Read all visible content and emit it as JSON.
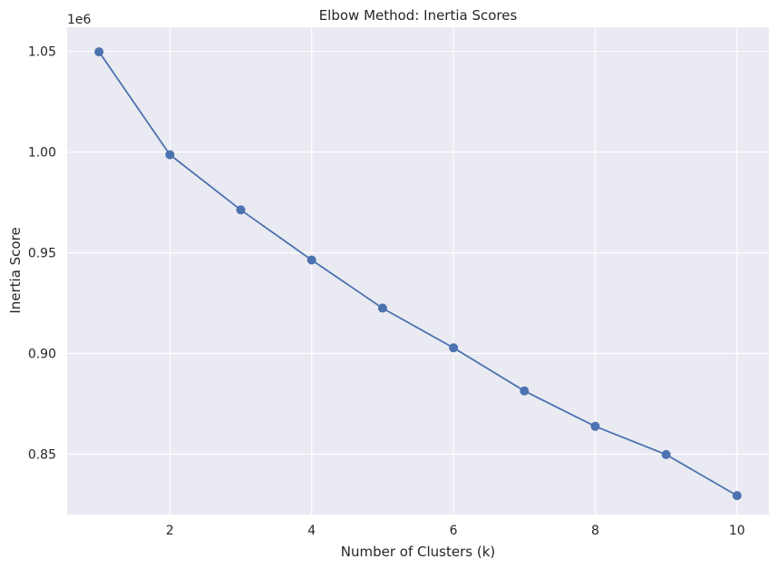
{
  "chart_data": {
    "type": "line",
    "title": "Elbow Method: Inertia Scores",
    "xlabel": "Number of Clusters (k)",
    "ylabel": "Inertia Score",
    "offset_text": "1e6",
    "x": [
      1,
      2,
      3,
      4,
      5,
      6,
      7,
      8,
      9,
      10
    ],
    "series": [
      {
        "values": [
          1049800,
          998700,
          971300,
          946400,
          922500,
          902800,
          881400,
          863800,
          849800,
          829400
        ]
      }
    ],
    "xlim": [
      0.55,
      10.45
    ],
    "ylim": [
      820000,
      1062000
    ],
    "x_ticks": [
      2,
      4,
      6,
      8,
      10
    ],
    "x_tick_labels": [
      "2",
      "4",
      "6",
      "8",
      "10"
    ],
    "y_ticks": [
      850000,
      900000,
      950000,
      1000000,
      1050000
    ],
    "y_tick_labels": [
      "0.85",
      "0.90",
      "0.95",
      "1.00",
      "1.05"
    ],
    "grid": true,
    "colors": {
      "plot_bg": "#eaeaf2",
      "grid": "#ffffff",
      "series": "#4c72b0",
      "text": "#262626"
    }
  }
}
